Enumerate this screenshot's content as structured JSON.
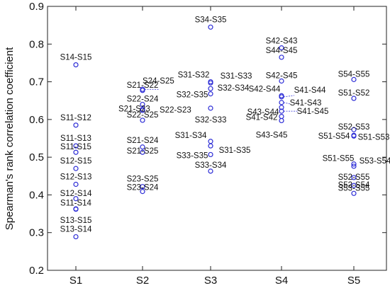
{
  "chart_data": {
    "type": "scatter",
    "ylabel": "Spearman's rank correlation coefficient",
    "xlabel": "",
    "ylim": [
      0.2,
      0.9
    ],
    "yticks": [
      "0.2",
      "0.3",
      "0.4",
      "0.5",
      "0.6",
      "0.7",
      "0.8",
      "0.9"
    ],
    "categories": [
      "S1",
      "S2",
      "S3",
      "S4",
      "S5"
    ],
    "grid": false,
    "points": [
      {
        "cat": 0,
        "y": 0.745,
        "label": "S14-S15"
      },
      {
        "cat": 0,
        "y": 0.585,
        "label": "S11-S12"
      },
      {
        "cat": 0,
        "y": 0.53,
        "label": "S11-S13"
      },
      {
        "cat": 0,
        "y": 0.513,
        "label": "S11-S15"
      },
      {
        "cat": 0,
        "y": 0.47,
        "label": "S12-S15"
      },
      {
        "cat": 0,
        "y": 0.428,
        "label": "S12-S13"
      },
      {
        "cat": 0,
        "y": 0.39,
        "label": "S12-S14"
      },
      {
        "cat": 0,
        "y": 0.362,
        "label": "S11-S14"
      },
      {
        "cat": 0,
        "y": 0.363,
        "label": "S13-S15"
      },
      {
        "cat": 0,
        "y": 0.289,
        "label": "S13-S14"
      },
      {
        "cat": 1,
        "y": 0.68,
        "label": "S24-S25"
      },
      {
        "cat": 1,
        "y": 0.677,
        "label": "S21-S22"
      },
      {
        "cat": 1,
        "y": 0.64,
        "label": "S22-S24"
      },
      {
        "cat": 1,
        "y": 0.627,
        "label": "S21-S23"
      },
      {
        "cat": 1,
        "y": 0.624,
        "label": "S22-S23"
      },
      {
        "cat": 1,
        "y": 0.598,
        "label": "S22-S25"
      },
      {
        "cat": 1,
        "y": 0.527,
        "label": "S21-S24"
      },
      {
        "cat": 1,
        "y": 0.513,
        "label": "S21-S25"
      },
      {
        "cat": 1,
        "y": 0.422,
        "label": "S23-S25"
      },
      {
        "cat": 1,
        "y": 0.409,
        "label": "S23-S24"
      },
      {
        "cat": 2,
        "y": 0.845,
        "label": "S34-S35"
      },
      {
        "cat": 2,
        "y": 0.7,
        "label": "S31-S32"
      },
      {
        "cat": 2,
        "y": 0.697,
        "label": "S31-S33"
      },
      {
        "cat": 2,
        "y": 0.682,
        "label": "S32-S34"
      },
      {
        "cat": 2,
        "y": 0.668,
        "label": "S32-S35"
      },
      {
        "cat": 2,
        "y": 0.63,
        "label": "S32-S33"
      },
      {
        "cat": 2,
        "y": 0.542,
        "label": "S31-S34"
      },
      {
        "cat": 2,
        "y": 0.53,
        "label": "S31-S35"
      },
      {
        "cat": 2,
        "y": 0.507,
        "label": "S33-S35"
      },
      {
        "cat": 2,
        "y": 0.463,
        "label": "S33-S34"
      },
      {
        "cat": 3,
        "y": 0.79,
        "label": "S42-S43"
      },
      {
        "cat": 3,
        "y": 0.765,
        "label": "S44-S45"
      },
      {
        "cat": 3,
        "y": 0.702,
        "label": "S42-S45"
      },
      {
        "cat": 3,
        "y": 0.663,
        "label": "S42-S44"
      },
      {
        "cat": 3,
        "y": 0.66,
        "label": "S41-S44"
      },
      {
        "cat": 3,
        "y": 0.645,
        "label": "S41-S43"
      },
      {
        "cat": 3,
        "y": 0.632,
        "label": "S43-S44"
      },
      {
        "cat": 3,
        "y": 0.622,
        "label": "S41-S45"
      },
      {
        "cat": 3,
        "y": 0.608,
        "label": "S41-S42"
      },
      {
        "cat": 3,
        "y": 0.597,
        "label": "S43-S45"
      },
      {
        "cat": 4,
        "y": 0.706,
        "label": "S54-S55"
      },
      {
        "cat": 4,
        "y": 0.656,
        "label": "S51-S52"
      },
      {
        "cat": 4,
        "y": 0.573,
        "label": "S52-S53"
      },
      {
        "cat": 4,
        "y": 0.558,
        "label": "S51-S54"
      },
      {
        "cat": 4,
        "y": 0.556,
        "label": "S51-S53"
      },
      {
        "cat": 4,
        "y": 0.482,
        "label": "S51-S55"
      },
      {
        "cat": 4,
        "y": 0.476,
        "label": "S53-S54"
      },
      {
        "cat": 4,
        "y": 0.446,
        "label": "S52-S55"
      },
      {
        "cat": 4,
        "y": 0.425,
        "label": "S52-S54"
      },
      {
        "cat": 4,
        "y": 0.404,
        "label": "S53-S55"
      }
    ]
  }
}
